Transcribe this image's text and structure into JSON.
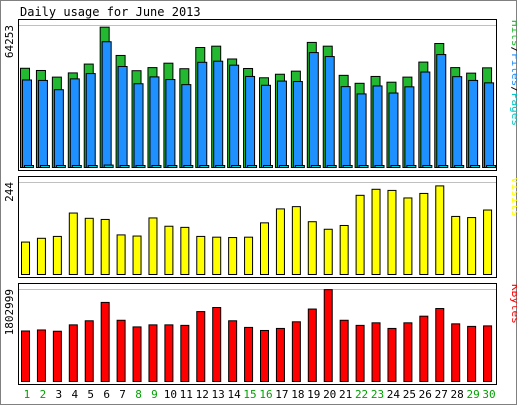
{
  "chart_data": {
    "type": "bar",
    "title": "Daily usage for June 2013",
    "categories": [
      "1",
      "2",
      "3",
      "4",
      "5",
      "6",
      "7",
      "8",
      "9",
      "10",
      "11",
      "12",
      "13",
      "14",
      "15",
      "16",
      "17",
      "18",
      "19",
      "20",
      "21",
      "22",
      "23",
      "24",
      "25",
      "26",
      "27",
      "28",
      "29",
      "30"
    ],
    "weekend_days": [
      "1",
      "2",
      "8",
      "9",
      "15",
      "16",
      "22",
      "23",
      "29",
      "30"
    ],
    "panels": [
      {
        "id": "pages-files-hits",
        "ylabel": [
          "Pages",
          "Files",
          "Hits"
        ],
        "ymax_label": "64253",
        "ymax": 64253,
        "grid": true,
        "series": [
          {
            "name": "Hits",
            "color": "#22b830",
            "values": [
              44900,
              43900,
              40900,
              42800,
              46800,
              63500,
              50700,
              43800,
              45200,
              47200,
              44700,
              54300,
              54900,
              49100,
              44800,
              40600,
              42200,
              43600,
              56600,
              54900,
              41700,
              38100,
              41200,
              38600,
              40900,
              47700,
              56100,
              45200,
              42700,
              45100
            ]
          },
          {
            "name": "Files",
            "color": "#1e90ff",
            "values": [
              39600,
              39400,
              35200,
              40100,
              42500,
              56900,
              45700,
              37900,
              41000,
              39800,
              37500,
              47600,
              48100,
              46300,
              41200,
              37200,
              39100,
              38900,
              52000,
              50200,
              36600,
              33300,
              36900,
              33700,
              36500,
              43200,
              51100,
              41100,
              39400,
              38300
            ]
          },
          {
            "name": "Pages",
            "color": "#00c8c8",
            "values": [
              900,
              900,
              800,
              800,
              900,
              1100,
              900,
              800,
              800,
              900,
              800,
              900,
              900,
              900,
              800,
              800,
              800,
              800,
              900,
              900,
              800,
              800,
              800,
              800,
              800,
              900,
              900,
              800,
              800,
              800
            ]
          }
        ]
      },
      {
        "id": "visits",
        "ylabel": [
          "Visits"
        ],
        "ymax_label": "244",
        "ymax": 244,
        "grid": true,
        "series": [
          {
            "name": "Visits",
            "color": "#ffff00",
            "values": [
              86,
              96,
              101,
              163,
              149,
              146,
              105,
              102,
              150,
              128,
              125,
              101,
              99,
              98,
              99,
              137,
              174,
              180,
              140,
              120,
              130,
              210,
              226,
              223,
              203,
              215,
              235,
              154,
              151,
              171
            ]
          }
        ]
      },
      {
        "id": "kbytes",
        "ylabel": [
          "KBytes"
        ],
        "ymax_label": "1802999",
        "ymax": 1802999,
        "grid": true,
        "series": [
          {
            "name": "KBytes",
            "color": "#ff0000",
            "values": [
              990000,
              1010000,
              985000,
              1110000,
              1190000,
              1550000,
              1200000,
              1070000,
              1110000,
              1110000,
              1100000,
              1370000,
              1450000,
              1190000,
              1060000,
              1000000,
              1040000,
              1170000,
              1420000,
              1800000,
              1200000,
              1100000,
              1150000,
              1040000,
              1150000,
              1280000,
              1430000,
              1130000,
              1080000,
              1090000
            ]
          }
        ]
      }
    ],
    "colors": {
      "background": "#ffffff",
      "frame": "#000000",
      "grid": "#c0c0c0",
      "weekday_label": "#000000",
      "weekend_label": "#00a000"
    }
  }
}
